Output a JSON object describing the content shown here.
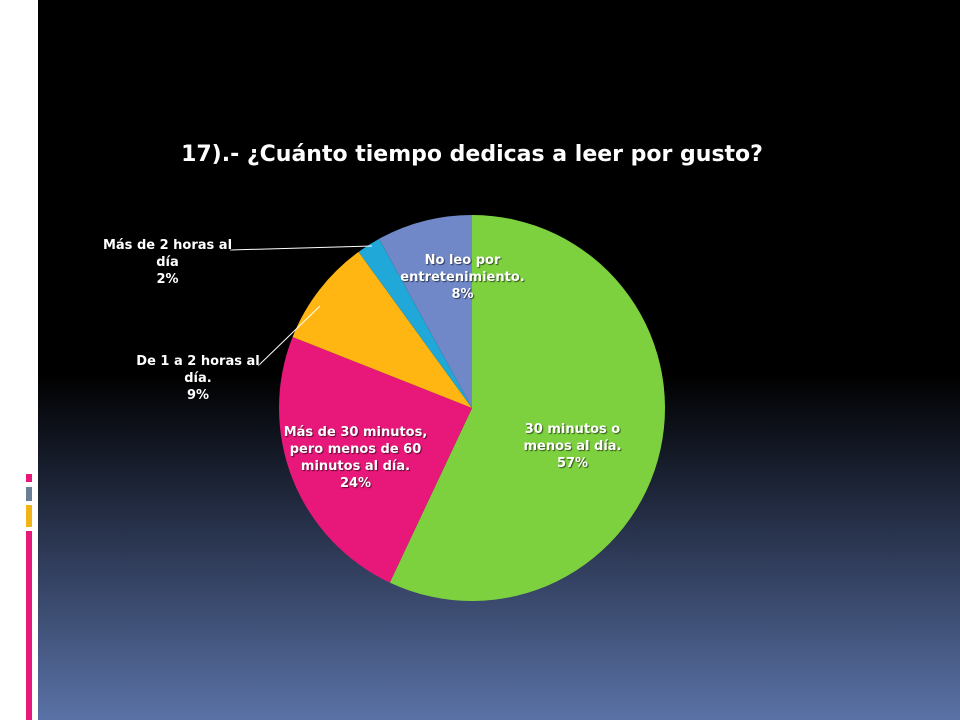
{
  "chart_data": {
    "type": "pie",
    "title": "17).- ¿Cuánto tiempo dedicas a leer por gusto?",
    "categories": [
      "30 minutos o menos al día.",
      "Más de 30 minutos, pero menos de 60 minutos al día.",
      "De 1 a 2 horas al día.",
      "Más de 2 horas al día",
      "No leo por entretenimiento."
    ],
    "values": [
      57,
      24,
      9,
      2,
      8
    ],
    "value_labels": [
      "57%",
      "24%",
      "9%",
      "2%",
      "8%"
    ],
    "colors": [
      "#7dd13f",
      "#e8177a",
      "#ffb612",
      "#1fa8d8",
      "#7088c8"
    ]
  }
}
